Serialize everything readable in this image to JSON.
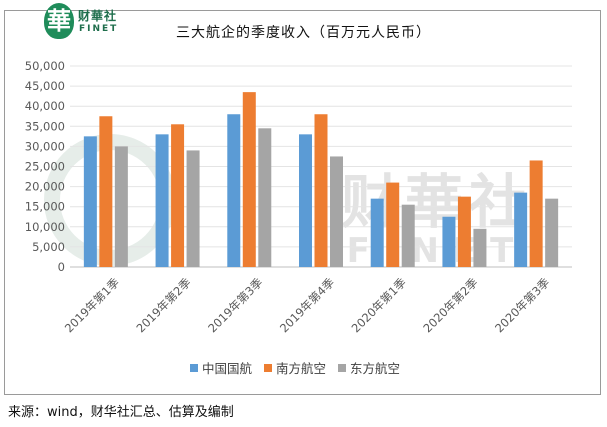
{
  "logo": {
    "badge": "華",
    "cn": "财華社",
    "en": "FINET"
  },
  "watermark": {
    "cn": "财華社",
    "en": "FINET"
  },
  "source": "来源：wind，财华社汇总、估算及编制",
  "colors": {
    "s1": "#5b9bd5",
    "s2": "#ed7d31",
    "s3": "#a5a5a5"
  },
  "chart_data": {
    "type": "bar",
    "title": "三大航企的季度收入（百万元人民币）",
    "xlabel": "",
    "ylabel": "",
    "ylim": [
      0,
      50000
    ],
    "yticks": [
      "0",
      "5,000",
      "10,000",
      "15,000",
      "20,000",
      "25,000",
      "30,000",
      "35,000",
      "40,000",
      "45,000",
      "50,000"
    ],
    "grid": true,
    "legend_position": "bottom",
    "categories": [
      "2019年第1季",
      "2019年第2季",
      "2019年第3季",
      "2019年第4季",
      "2020年第1季",
      "2020年第2季",
      "2020年第3季"
    ],
    "series": [
      {
        "name": "中国国航",
        "values": [
          32500,
          33000,
          38000,
          33000,
          17000,
          12500,
          18500
        ]
      },
      {
        "name": "南方航空",
        "values": [
          37500,
          35500,
          43500,
          38000,
          21000,
          17500,
          26500
        ]
      },
      {
        "name": "东方航空",
        "values": [
          30000,
          29000,
          34500,
          27500,
          15500,
          9500,
          17000
        ]
      }
    ]
  }
}
